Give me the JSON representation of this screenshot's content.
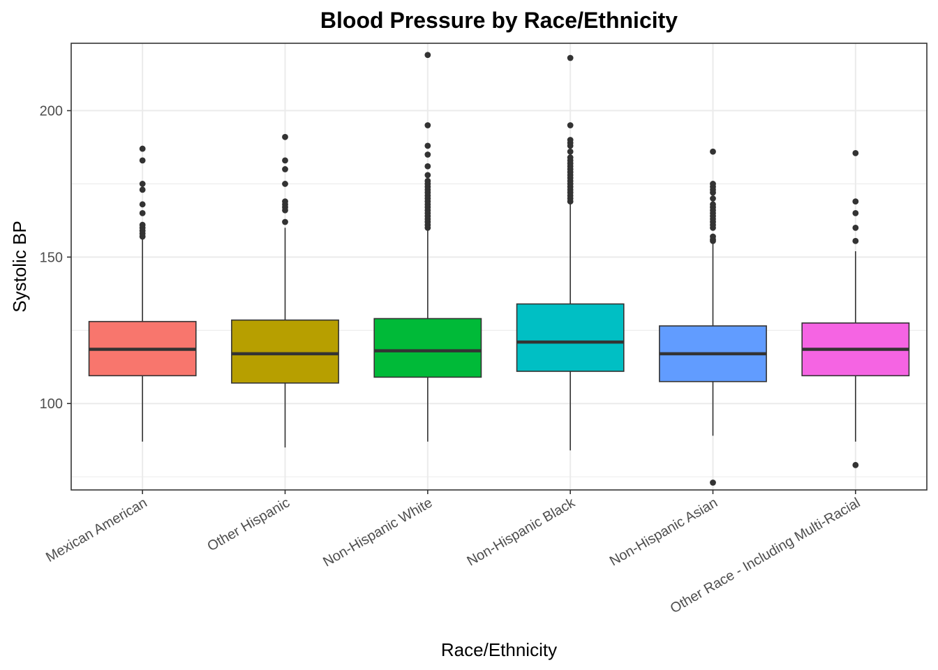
{
  "chart_data": {
    "type": "boxplot",
    "title": "Blood Pressure by Race/Ethnicity",
    "xlabel": "Race/Ethnicity",
    "ylabel": "Systolic BP",
    "ylim": [
      70.5,
      223
    ],
    "yticks_major": [
      100,
      150,
      200
    ],
    "yticks_minor": [
      75,
      125,
      175
    ],
    "grid": true,
    "legend": "none",
    "categories": [
      "Mexican American",
      "Other Hispanic",
      "Non-Hispanic White",
      "Non-Hispanic Black",
      "Non-Hispanic Asian",
      "Other Race - Including Multi-Racial"
    ],
    "boxes": [
      {
        "category": "Mexican American",
        "color": "#F8766D",
        "whisker_low": 87,
        "q1": 109.5,
        "median": 118.5,
        "q3": 128,
        "whisker_high": 156.5,
        "outliers": [
          157,
          158,
          159,
          160,
          161,
          165,
          168,
          173,
          175,
          183,
          187
        ]
      },
      {
        "category": "Other Hispanic",
        "color": "#B79F00",
        "whisker_low": 85,
        "q1": 107,
        "median": 117,
        "q3": 128.5,
        "whisker_high": 160,
        "outliers": [
          162,
          166,
          167,
          168,
          169,
          175,
          180,
          183,
          191
        ]
      },
      {
        "category": "Non-Hispanic White",
        "color": "#00BA38",
        "whisker_low": 87,
        "q1": 109,
        "median": 118,
        "q3": 129,
        "whisker_high": 159.5,
        "outliers": [
          160,
          161,
          162,
          163,
          164,
          165,
          166,
          167,
          168,
          169,
          170,
          171,
          172,
          173,
          174,
          175,
          176,
          178,
          181,
          185,
          188,
          195,
          219
        ]
      },
      {
        "category": "Non-Hispanic Black",
        "color": "#00BFC4",
        "whisker_low": 84,
        "q1": 111,
        "median": 121,
        "q3": 134,
        "whisker_high": 168.5,
        "outliers": [
          169,
          170,
          171,
          172,
          173,
          174,
          175,
          176,
          177,
          178,
          179,
          180,
          181,
          182,
          183,
          184,
          186,
          188,
          189,
          190,
          195,
          218
        ]
      },
      {
        "category": "Non-Hispanic Asian",
        "color": "#619CFF",
        "whisker_low": 89,
        "q1": 107.5,
        "median": 117,
        "q3": 126.5,
        "whisker_high": 155,
        "outliers": [
          73,
          155.5,
          156,
          157,
          160,
          161,
          162,
          163,
          164,
          165,
          166,
          167,
          168,
          170,
          172,
          173,
          174,
          175,
          186
        ]
      },
      {
        "category": "Other Race - Including Multi-Racial",
        "color": "#F564E3",
        "whisker_low": 87,
        "q1": 109.5,
        "median": 118.5,
        "q3": 127.5,
        "whisker_high": 152,
        "outliers": [
          79,
          155.5,
          160,
          165,
          169,
          185.5
        ]
      }
    ]
  }
}
